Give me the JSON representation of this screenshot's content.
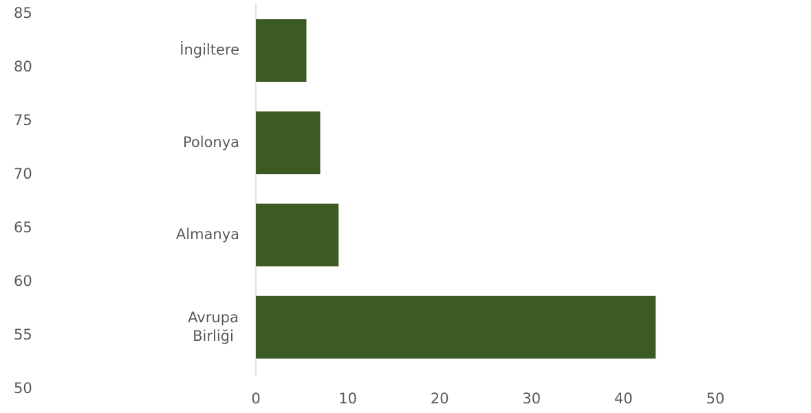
{
  "chart_data": {
    "type": "bar",
    "orientation": "horizontal",
    "categories": [
      [
        "Avrupa",
        "Birliği"
      ],
      [
        "Almanya"
      ],
      [
        "Polonya"
      ],
      [
        "İngiltere"
      ]
    ],
    "values": [
      43.5,
      9.0,
      7.0,
      5.5
    ],
    "xlim": [
      0,
      50
    ],
    "xticks": [
      "0",
      "10",
      "20",
      "30",
      "40",
      "50"
    ],
    "left_axis_ticks": [
      "85",
      "80",
      "75",
      "70",
      "65",
      "60",
      "55",
      "50"
    ],
    "grid": false,
    "legend": "none",
    "bar_color": "#3b5a24",
    "axis_color": "#d9d9d9"
  }
}
